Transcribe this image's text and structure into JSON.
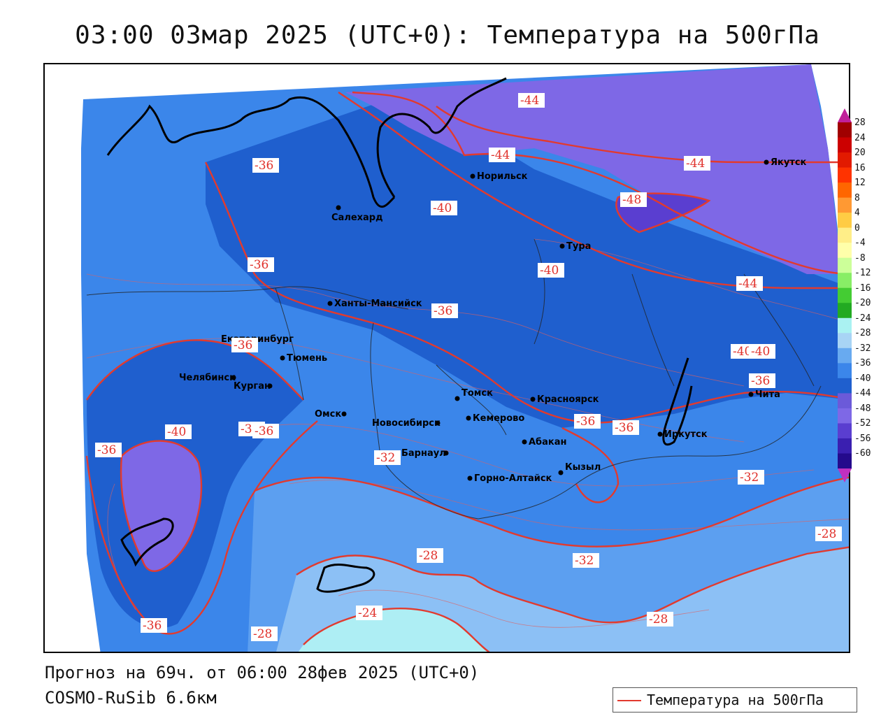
{
  "title": "03:00 03мар 2025 (UTC+0): Температура на 500гПа",
  "footer": {
    "forecast": "Прогноз на 69ч. от 06:00 28фев 2025 (UTC+0)",
    "model": "COSMO-RuSib 6.6км"
  },
  "legend": {
    "label": "Температура на 500гПа",
    "color": "#e23a2e"
  },
  "colorbar": {
    "ticks": [
      "28",
      "24",
      "20",
      "16",
      "12",
      "8",
      "4",
      "0",
      "-4",
      "-8",
      "-12",
      "-16",
      "-20",
      "-24",
      "-28",
      "-32",
      "-36",
      "-40",
      "-44",
      "-48",
      "-52",
      "-56",
      "-60"
    ],
    "colors": [
      "#a00000",
      "#cc0000",
      "#e21a00",
      "#ff3300",
      "#ff6600",
      "#ff9933",
      "#ffcc44",
      "#ffee88",
      "#ffffaa",
      "#ccff99",
      "#88ee66",
      "#44cc33",
      "#22aa22",
      "#aaf2f2",
      "#a8d4f5",
      "#68aaf0",
      "#3b86ea",
      "#1f5fce",
      "#6b5ad9",
      "#7e68e6",
      "#5a3ed0",
      "#3a1fb0",
      "#240a8c"
    ],
    "arrow_top": "#c0209a",
    "arrow_bottom": "#c030c0"
  },
  "cities": [
    {
      "name": "Салехард"
    },
    {
      "name": "Норильск"
    },
    {
      "name": "Якутск"
    },
    {
      "name": "Тура"
    },
    {
      "name": "Ханты-Мансийск"
    },
    {
      "name": "Екатеринбург"
    },
    {
      "name": "Тюмень"
    },
    {
      "name": "Челябинск"
    },
    {
      "name": "Курган"
    },
    {
      "name": "Омск"
    },
    {
      "name": "Томск"
    },
    {
      "name": "Новосибирск"
    },
    {
      "name": "Кемерово"
    },
    {
      "name": "Красноярск"
    },
    {
      "name": "Абакан"
    },
    {
      "name": "Барнаул"
    },
    {
      "name": "Горно-Алтайск"
    },
    {
      "name": "Кызыл"
    },
    {
      "name": "Иркутск"
    },
    {
      "name": "Чита"
    }
  ],
  "contour_labels": [
    "-44",
    "-44",
    "-44",
    "-48",
    "-44",
    "-40",
    "-40",
    "-40",
    "-36",
    "-36",
    "-36",
    "-36",
    "-36",
    "-36",
    "-36",
    "-36",
    "-36",
    "-40",
    "-36",
    "-32",
    "-32",
    "-32",
    "-28",
    "-28",
    "-28",
    "-28",
    "-24",
    "-36",
    "-40"
  ]
}
